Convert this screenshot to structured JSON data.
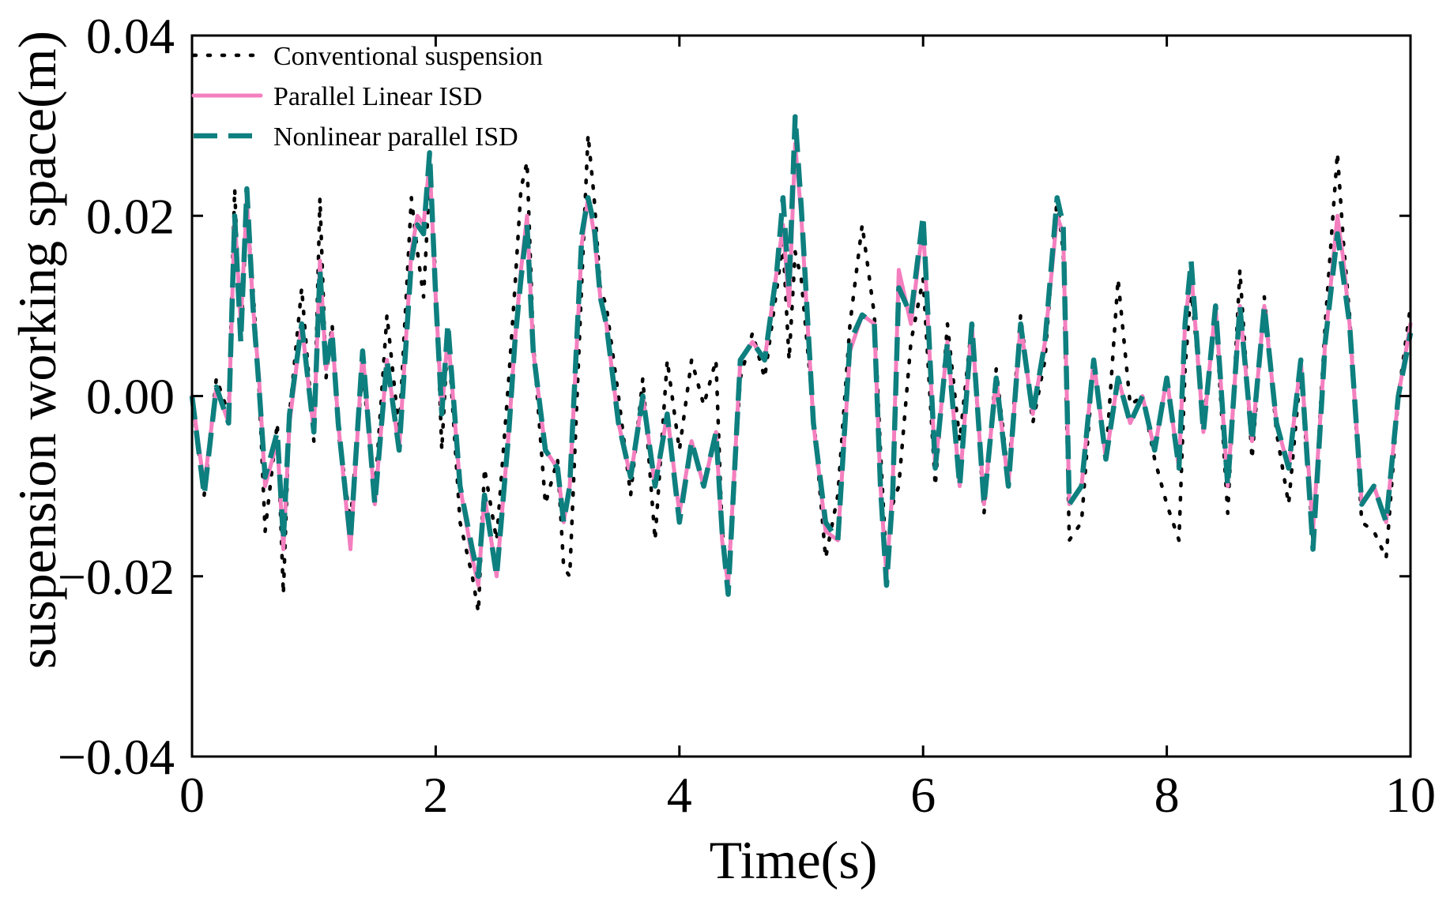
{
  "chart_data": {
    "type": "line",
    "title": "",
    "xlabel": "Time(s)",
    "ylabel": "suspension working space(m)",
    "xlim": [
      0,
      10
    ],
    "ylim": [
      -0.04,
      0.04
    ],
    "x_ticks": [
      0,
      2,
      4,
      6,
      8,
      10
    ],
    "y_ticks": [
      -0.04,
      -0.02,
      0.0,
      0.02,
      0.04
    ],
    "x_tick_labels": [
      "0",
      "2",
      "4",
      "6",
      "8",
      "10"
    ],
    "y_tick_labels": [
      "−0.04",
      "−0.02",
      "0.00",
      "0.02",
      "0.04"
    ],
    "legend_position": "top-left",
    "grid": false,
    "x": [
      0.0,
      0.1,
      0.2,
      0.3,
      0.35,
      0.4,
      0.45,
      0.5,
      0.55,
      0.6,
      0.7,
      0.75,
      0.8,
      0.9,
      1.0,
      1.05,
      1.1,
      1.15,
      1.2,
      1.3,
      1.4,
      1.5,
      1.6,
      1.7,
      1.8,
      1.85,
      1.9,
      1.95,
      2.0,
      2.05,
      2.1,
      2.2,
      2.3,
      2.35,
      2.4,
      2.5,
      2.6,
      2.65,
      2.7,
      2.75,
      2.8,
      2.9,
      3.0,
      3.05,
      3.1,
      3.2,
      3.25,
      3.3,
      3.35,
      3.4,
      3.5,
      3.6,
      3.7,
      3.8,
      3.9,
      4.0,
      4.1,
      4.2,
      4.3,
      4.35,
      4.4,
      4.5,
      4.6,
      4.7,
      4.8,
      4.85,
      4.9,
      4.95,
      5.0,
      5.1,
      5.2,
      5.3,
      5.4,
      5.5,
      5.6,
      5.65,
      5.7,
      5.75,
      5.8,
      5.9,
      6.0,
      6.1,
      6.2,
      6.3,
      6.4,
      6.5,
      6.6,
      6.7,
      6.8,
      6.9,
      7.0,
      7.1,
      7.15,
      7.2,
      7.3,
      7.4,
      7.5,
      7.6,
      7.7,
      7.8,
      7.9,
      8.0,
      8.1,
      8.15,
      8.2,
      8.3,
      8.4,
      8.5,
      8.6,
      8.7,
      8.8,
      8.9,
      9.0,
      9.1,
      9.2,
      9.3,
      9.4,
      9.45,
      9.5,
      9.6,
      9.7,
      9.8,
      9.9,
      10.0
    ],
    "series": [
      {
        "name": "Conventional suspension",
        "style": "dotted",
        "color": "#000000",
        "values": [
          0.0,
          -0.011,
          0.002,
          -0.002,
          0.023,
          0.006,
          0.021,
          0.012,
          0.001,
          -0.015,
          -0.003,
          -0.022,
          -0.002,
          0.012,
          -0.005,
          0.022,
          0.002,
          0.008,
          -0.004,
          -0.014,
          0.003,
          -0.011,
          0.009,
          -0.004,
          0.022,
          0.016,
          0.011,
          0.024,
          0.013,
          -0.006,
          0.007,
          -0.014,
          -0.02,
          -0.024,
          -0.008,
          -0.016,
          0.002,
          0.012,
          0.023,
          0.026,
          0.006,
          -0.012,
          -0.007,
          -0.019,
          -0.02,
          0.013,
          0.029,
          0.022,
          0.012,
          0.01,
          0.0,
          -0.011,
          0.002,
          -0.016,
          0.004,
          -0.006,
          0.004,
          -0.001,
          0.004,
          -0.015,
          -0.02,
          0.002,
          0.007,
          0.002,
          0.012,
          0.017,
          0.004,
          0.016,
          0.013,
          -0.002,
          -0.018,
          -0.011,
          0.008,
          0.019,
          0.009,
          -0.006,
          -0.019,
          -0.012,
          -0.01,
          0.006,
          0.013,
          -0.01,
          0.008,
          -0.005,
          0.008,
          -0.013,
          0.003,
          -0.009,
          0.009,
          -0.003,
          0.004,
          0.022,
          0.016,
          -0.016,
          -0.014,
          0.004,
          -0.007,
          0.013,
          -0.001,
          0.0,
          -0.007,
          -0.012,
          -0.016,
          0.003,
          0.012,
          -0.003,
          0.009,
          -0.013,
          0.014,
          -0.007,
          0.011,
          -0.004,
          -0.012,
          0.003,
          -0.016,
          0.008,
          0.027,
          0.017,
          0.009,
          -0.014,
          -0.015,
          -0.018,
          0.0,
          0.01
        ]
      },
      {
        "name": "Parallel Linear ISD",
        "style": "solid",
        "color": "#f47fbf",
        "values": [
          0.0,
          -0.01,
          0.001,
          -0.003,
          0.02,
          0.008,
          0.022,
          0.01,
          0.002,
          -0.01,
          -0.005,
          -0.017,
          -0.003,
          0.008,
          -0.004,
          0.015,
          0.003,
          0.007,
          -0.003,
          -0.017,
          0.005,
          -0.012,
          0.004,
          -0.006,
          0.016,
          0.02,
          0.019,
          0.026,
          0.011,
          -0.002,
          0.007,
          -0.01,
          -0.018,
          -0.021,
          -0.011,
          -0.02,
          -0.004,
          0.006,
          0.014,
          0.02,
          0.005,
          -0.006,
          -0.008,
          -0.014,
          -0.01,
          0.017,
          0.022,
          0.018,
          0.011,
          0.008,
          -0.003,
          -0.009,
          0.0,
          -0.01,
          -0.002,
          -0.013,
          -0.005,
          -0.01,
          -0.004,
          -0.016,
          -0.021,
          0.004,
          0.006,
          0.004,
          0.014,
          0.019,
          0.01,
          0.028,
          0.02,
          -0.003,
          -0.015,
          -0.016,
          0.005,
          0.009,
          0.008,
          -0.01,
          -0.02,
          -0.01,
          0.014,
          0.008,
          0.019,
          -0.008,
          0.006,
          -0.01,
          0.008,
          -0.012,
          0.002,
          -0.01,
          0.008,
          -0.002,
          0.006,
          0.02,
          0.018,
          -0.012,
          -0.01,
          0.004,
          -0.007,
          0.002,
          -0.003,
          0.0,
          -0.006,
          0.002,
          -0.008,
          0.008,
          0.014,
          -0.004,
          0.01,
          -0.01,
          0.01,
          -0.005,
          0.01,
          -0.003,
          -0.008,
          0.004,
          -0.015,
          0.006,
          0.02,
          0.015,
          0.008,
          -0.012,
          -0.01,
          -0.014,
          0.0,
          0.008
        ]
      },
      {
        "name": "Nonlinear parallel ISD",
        "style": "dashed",
        "color": "#0e7f7f",
        "values": [
          0.0,
          -0.011,
          0.001,
          -0.003,
          0.02,
          0.006,
          0.023,
          0.01,
          0.001,
          -0.009,
          -0.004,
          -0.016,
          -0.002,
          0.008,
          -0.004,
          0.014,
          0.003,
          0.007,
          -0.003,
          -0.016,
          0.005,
          -0.012,
          0.004,
          -0.006,
          0.015,
          0.019,
          0.018,
          0.027,
          0.011,
          -0.002,
          0.008,
          -0.01,
          -0.017,
          -0.02,
          -0.011,
          -0.02,
          -0.004,
          0.006,
          0.013,
          0.019,
          0.005,
          -0.006,
          -0.008,
          -0.014,
          -0.01,
          0.018,
          0.022,
          0.019,
          0.011,
          0.008,
          -0.003,
          -0.009,
          0.0,
          -0.01,
          -0.002,
          -0.014,
          -0.005,
          -0.01,
          -0.004,
          -0.015,
          -0.022,
          0.004,
          0.006,
          0.004,
          0.014,
          0.022,
          0.012,
          0.031,
          0.021,
          -0.003,
          -0.014,
          -0.016,
          0.006,
          0.009,
          0.008,
          -0.01,
          -0.021,
          -0.011,
          0.012,
          0.009,
          0.02,
          -0.008,
          0.006,
          -0.01,
          0.008,
          -0.012,
          0.002,
          -0.01,
          0.008,
          -0.002,
          0.006,
          0.022,
          0.019,
          -0.012,
          -0.01,
          0.004,
          -0.007,
          0.002,
          -0.003,
          0.0,
          -0.006,
          0.002,
          -0.008,
          0.008,
          0.015,
          -0.004,
          0.01,
          -0.01,
          0.01,
          -0.005,
          0.01,
          -0.003,
          -0.008,
          0.004,
          -0.017,
          0.006,
          0.018,
          0.013,
          0.008,
          -0.012,
          -0.01,
          -0.014,
          0.0,
          0.007
        ]
      }
    ]
  }
}
